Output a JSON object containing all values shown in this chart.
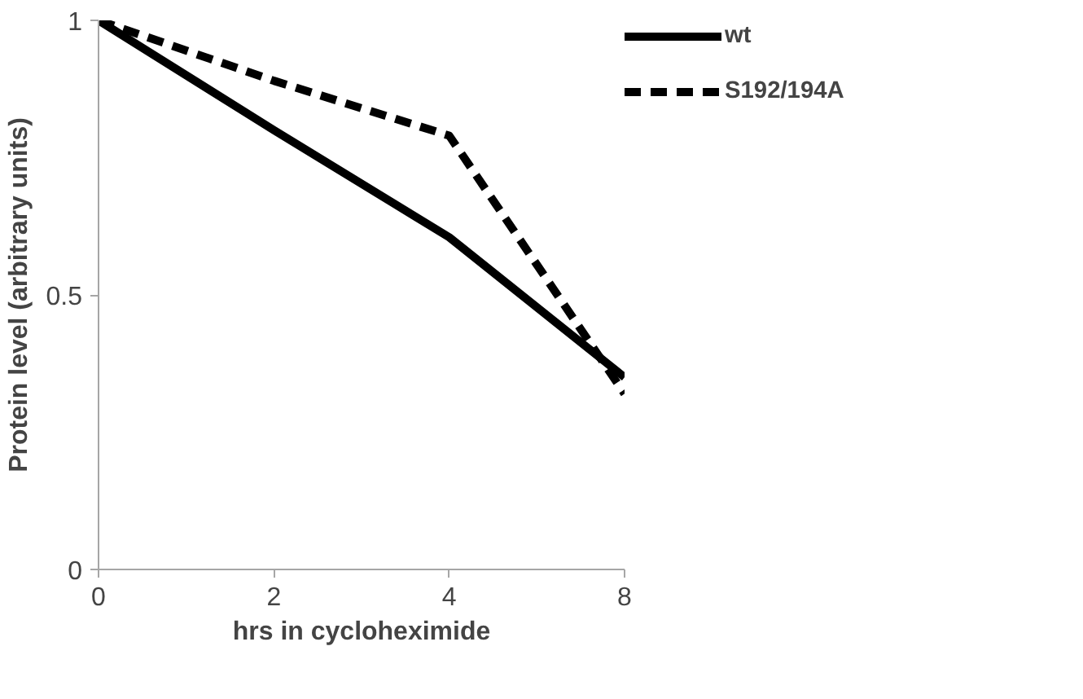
{
  "chart_data": {
    "type": "line",
    "xlabel": "hrs in cycloheximide",
    "ylabel": "Protein level (arbitrary units)",
    "categories": [
      "0",
      "2",
      "4",
      "8"
    ],
    "series": [
      {
        "name": "wt",
        "color": "#000000",
        "values": [
          1,
          0.8,
          0.605,
          0.35
        ],
        "line_style": "solid"
      },
      {
        "name": "S192/194A",
        "color": "#000000",
        "values": [
          1,
          0.89,
          0.79,
          0.32
        ],
        "line_style": "dashed"
      }
    ],
    "ylim": [
      0,
      1
    ],
    "yticks": [
      0,
      0.5,
      1
    ],
    "grid": false,
    "legend": "right",
    "marker": "none"
  }
}
